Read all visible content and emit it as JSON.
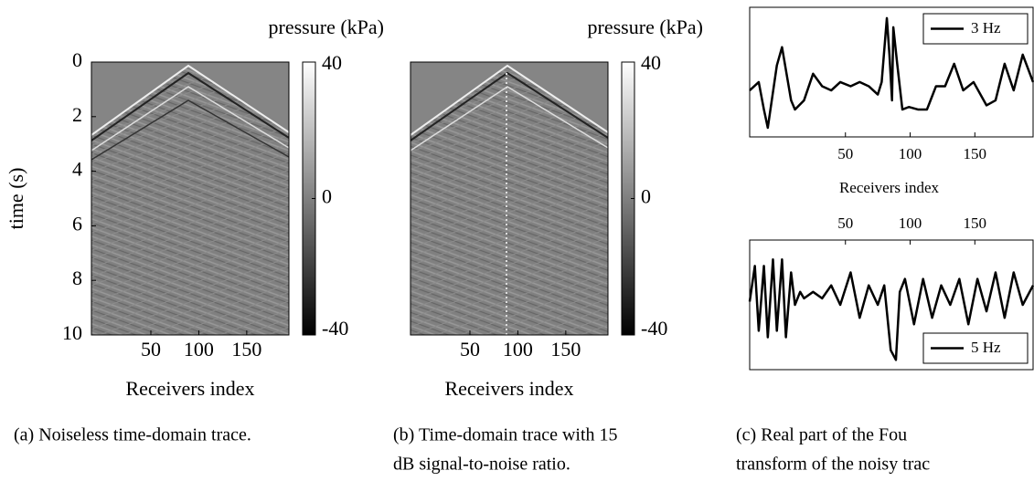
{
  "chart_data": [
    {
      "type": "image",
      "ylabel": "time (s)",
      "xlabel": "Receivers index",
      "xlim": [
        -12,
        194
      ],
      "xticks": [
        50,
        100,
        150
      ],
      "ylim": [
        10,
        0
      ],
      "yticks": [
        0,
        2,
        4,
        6,
        8,
        10
      ],
      "colorbar": {
        "label": "pressure (kPa)",
        "lim": [
          -40,
          40
        ],
        "ticks": [
          40,
          0,
          -40
        ]
      }
    },
    {
      "type": "image",
      "xlabel": "Receivers index",
      "xlim": [
        -12,
        194
      ],
      "xticks": [
        50,
        100,
        150
      ],
      "colorbar": {
        "label": "pressure (kPa)",
        "lim": [
          -40,
          40
        ],
        "ticks": [
          40,
          0,
          -40
        ]
      }
    },
    {
      "type": "line",
      "xlabel": "Receivers index",
      "xlim": [
        -24,
        195
      ],
      "ylim": [
        -0.56,
        1.0
      ],
      "xticks": [
        50,
        100,
        150
      ],
      "legend": "upper right",
      "x": [
        -24,
        -17,
        -13,
        -10,
        -3,
        1,
        8,
        11,
        18,
        25,
        32,
        39,
        46,
        54,
        61,
        68,
        75,
        78,
        82,
        84,
        86,
        87,
        90,
        94,
        99,
        106,
        113,
        120,
        127,
        134,
        141,
        149,
        159,
        166,
        173,
        180,
        187,
        195
      ],
      "series": [
        {
          "name": "3 Hz",
          "color": "#000000",
          "values": [
            0.0,
            0.1,
            -0.23,
            -0.45,
            0.3,
            0.52,
            -0.12,
            -0.23,
            -0.12,
            0.2,
            0.05,
            0.0,
            0.1,
            0.05,
            0.1,
            0.05,
            -0.05,
            0.1,
            0.87,
            0.43,
            -0.12,
            0.76,
            0.32,
            -0.23,
            -0.2,
            -0.23,
            -0.23,
            0.05,
            0.05,
            0.32,
            0.0,
            0.1,
            -0.18,
            -0.12,
            0.32,
            0.0,
            0.43,
            0.1
          ]
        }
      ]
    },
    {
      "type": "line",
      "xaxis": "top",
      "xlim": [
        -24,
        195
      ],
      "ylim": [
        -1,
        1
      ],
      "xticks": [
        50,
        100,
        150
      ],
      "legend": "lower right",
      "x": [
        -24,
        -20,
        -17,
        -13,
        -10,
        -6,
        -3,
        1,
        4,
        8,
        11,
        15,
        18,
        25,
        32,
        39,
        46,
        54,
        61,
        68,
        75,
        80,
        85,
        89,
        92,
        96,
        103,
        110,
        117,
        124,
        131,
        138,
        145,
        152,
        159,
        166,
        173,
        180,
        187,
        195
      ],
      "series": [
        {
          "name": "5 Hz",
          "color": "#000000",
          "values": [
            0.05,
            0.6,
            -0.4,
            0.6,
            -0.5,
            0.7,
            -0.4,
            0.7,
            -0.5,
            0.5,
            0.0,
            0.2,
            0.1,
            0.2,
            0.1,
            0.3,
            0.0,
            0.5,
            -0.2,
            0.3,
            0.0,
            0.3,
            -0.7,
            -0.85,
            0.2,
            0.4,
            -0.3,
            0.4,
            -0.2,
            0.3,
            0.0,
            0.4,
            -0.3,
            0.4,
            -0.1,
            0.5,
            -0.2,
            0.5,
            0.0,
            0.3
          ]
        }
      ]
    }
  ],
  "captions": [
    "(a) Noiseless time-domain trace.",
    [
      "(b) Time-domain trace with 15",
      "dB signal-to-noise ratio."
    ],
    [
      "(c) Real part of the Fou",
      "transform of the noisy trac"
    ]
  ]
}
